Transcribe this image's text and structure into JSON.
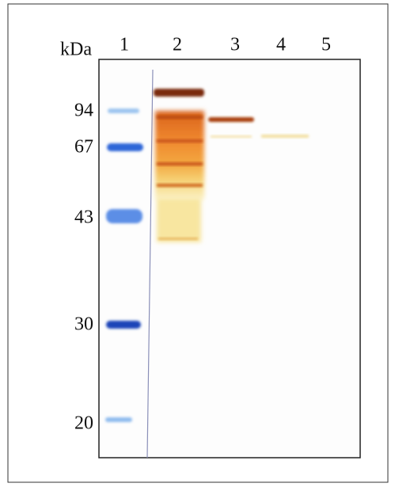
{
  "unit_label": "kDa",
  "lanes": [
    "1",
    "2",
    "3",
    "4",
    "5"
  ],
  "markers": [
    94,
    67,
    43,
    30,
    20
  ]
}
